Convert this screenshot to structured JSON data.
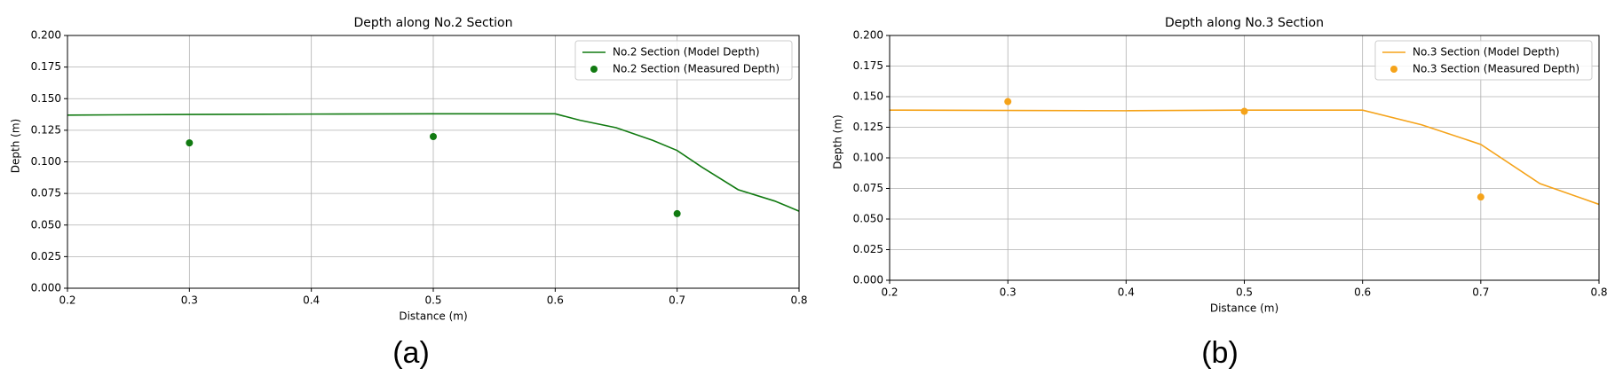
{
  "chart_data": [
    {
      "type": "line",
      "title": "Depth along No.2 Section",
      "xlabel": "Distance (m)",
      "ylabel": "Depth (m)",
      "label": "(a)",
      "xlim": [
        0.2,
        0.8
      ],
      "ylim": [
        0,
        0.2
      ],
      "xticks": [
        0.2,
        0.3,
        0.4,
        0.5,
        0.6,
        0.7,
        0.8
      ],
      "yticks": [
        {
          "value": 0,
          "label": "0.000"
        },
        {
          "value": 0.025,
          "label": "0.025"
        },
        {
          "value": 0.05,
          "label": "0.050"
        },
        {
          "value": 0.075,
          "label": "0.075"
        },
        {
          "value": 0.1,
          "label": "0.100"
        },
        {
          "value": 0.125,
          "label": "0.125"
        },
        {
          "value": 0.15,
          "label": "0.150"
        },
        {
          "value": 0.175,
          "label": "0.175"
        },
        {
          "value": 0.2,
          "label": "0.200"
        }
      ],
      "grid": true,
      "legend": "upper right",
      "series": [
        {
          "name": "No.2 Section (Model Depth)",
          "style": "line",
          "color": "#117a11",
          "x": [
            0.2,
            0.3,
            0.4,
            0.5,
            0.6,
            0.62,
            0.65,
            0.68,
            0.7,
            0.72,
            0.75,
            0.78,
            0.8
          ],
          "values": [
            0.137,
            0.1375,
            0.1378,
            0.138,
            0.138,
            0.133,
            0.127,
            0.117,
            0.109,
            0.096,
            0.078,
            0.069,
            0.061
          ]
        },
        {
          "name": "No.2 Section (Measured Depth)",
          "style": "scatter",
          "color": "#117a11",
          "x": [
            0.3,
            0.5,
            0.7
          ],
          "values": [
            0.115,
            0.12,
            0.059
          ]
        }
      ]
    },
    {
      "type": "line",
      "title": "Depth along No.3 Section",
      "xlabel": "Distance (m)",
      "ylabel": "Depth (m)",
      "label": "(b)",
      "xlim": [
        0.2,
        0.8
      ],
      "ylim": [
        0,
        0.2
      ],
      "xticks": [
        0.2,
        0.3,
        0.4,
        0.5,
        0.6,
        0.7,
        0.8
      ],
      "yticks": [
        {
          "value": 0,
          "label": "0.000"
        },
        {
          "value": 0.025,
          "label": "0.025"
        },
        {
          "value": 0.05,
          "label": "0.050"
        },
        {
          "value": 0.075,
          "label": "0.075"
        },
        {
          "value": 0.1,
          "label": "0.100"
        },
        {
          "value": 0.125,
          "label": "0.125"
        },
        {
          "value": 0.15,
          "label": "0.150"
        },
        {
          "value": 0.175,
          "label": "0.175"
        },
        {
          "value": 0.2,
          "label": "0.200"
        }
      ],
      "grid": true,
      "legend": "upper right",
      "series": [
        {
          "name": "No.3 Section (Model Depth)",
          "style": "line",
          "color": "#f5a31a",
          "x": [
            0.2,
            0.4,
            0.5,
            0.6,
            0.65,
            0.7,
            0.75,
            0.8
          ],
          "values": [
            0.139,
            0.1385,
            0.139,
            0.139,
            0.127,
            0.111,
            0.079,
            0.062
          ]
        },
        {
          "name": "No.3 Section (Measured Depth)",
          "style": "scatter",
          "color": "#f5a31a",
          "x": [
            0.3,
            0.5,
            0.7
          ],
          "values": [
            0.146,
            0.138,
            0.068
          ]
        }
      ]
    }
  ]
}
